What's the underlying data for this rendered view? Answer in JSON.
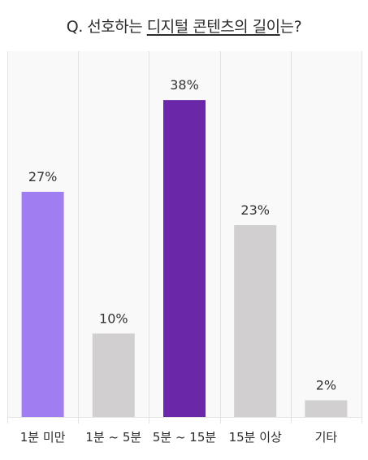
{
  "title": {
    "prefix": "Q. 선호하는 ",
    "highlight": "디지털 콘텐츠의 길이",
    "suffix": "는?"
  },
  "colors": {
    "highlight": "#a07df0",
    "primary": "#6a27a8",
    "neutral": "#d1cfd0",
    "grid": "#e2e2e2",
    "background": "#f9f9f9"
  },
  "chart_data": {
    "type": "bar",
    "title": "Q. 선호하는 디지털 콘텐츠의 길이는?",
    "categories": [
      "1분 미만",
      "1분 ~ 5분",
      "5분 ~ 15분",
      "15분 이상",
      "기타"
    ],
    "values": [
      27,
      10,
      38,
      23,
      2
    ],
    "data_labels": [
      "27%",
      "10%",
      "38%",
      "23%",
      "2%"
    ],
    "bar_colors": [
      "#a07df0",
      "#d1cfd0",
      "#6a27a8",
      "#d1cfd0",
      "#d1cfd0"
    ],
    "unit": "%",
    "ylim": [
      0,
      40
    ],
    "grid": "vertical separators",
    "legend": "none"
  }
}
